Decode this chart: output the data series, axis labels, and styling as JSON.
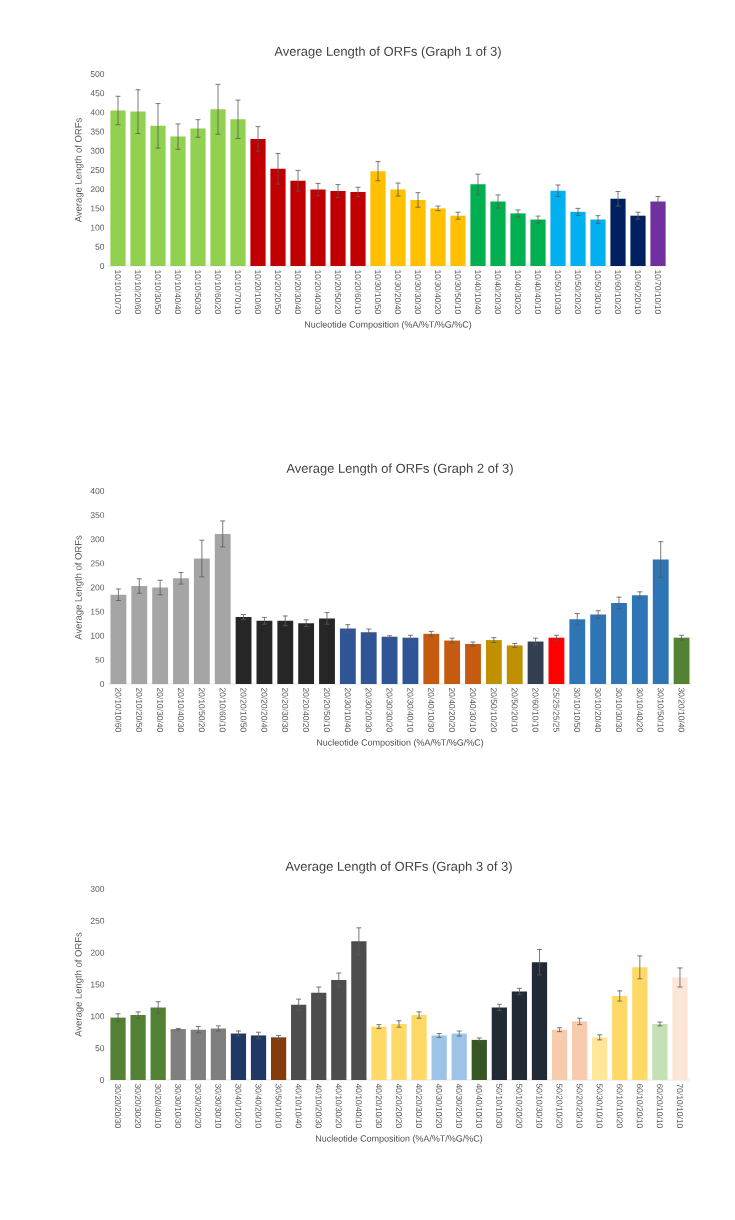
{
  "chart_data": [
    {
      "type": "bar",
      "title": "Average Length of ORFs (Graph 1 of 3)",
      "xlabel": "Nucleotide Composition (%A/%T/%G/%C)",
      "ylabel": "Average Length  of ORFs",
      "categories": [
        "10/10/10/70",
        "10/10/20/60",
        "10/10/30/50",
        "10/10/40/40",
        "10/10/50/30",
        "10/10/60/20",
        "10/10/70/10",
        "10/20/10/60",
        "10/20/20/50",
        "10/20/30/40",
        "10/20/40/30",
        "10/20/50/20",
        "10/20/60/10",
        "10/30/10/50",
        "10/30/20/40",
        "10/30/30/30",
        "10/30/40/20",
        "10/30/50/10",
        "10/40/10/40",
        "10/40/20/30",
        "10/40/30/20",
        "10/40/40/10",
        "10/50/10/30",
        "10/50/20/20",
        "10/50/30/10",
        "10/60/10/20",
        "10/60/20/10",
        "10/70/10/10"
      ],
      "values": [
        405,
        402,
        365,
        337,
        358,
        408,
        382,
        331,
        253,
        222,
        199,
        195,
        193,
        247,
        199,
        172,
        150,
        131,
        213,
        168,
        137,
        121,
        196,
        141,
        121,
        175,
        131,
        168
      ],
      "errors": [
        37,
        57,
        58,
        33,
        23,
        65,
        50,
        32,
        40,
        27,
        16,
        17,
        12,
        25,
        17,
        19,
        6,
        9,
        26,
        17,
        9,
        9,
        15,
        9,
        10,
        19,
        9,
        13
      ],
      "colors": [
        "#92d050",
        "#92d050",
        "#92d050",
        "#92d050",
        "#92d050",
        "#92d050",
        "#92d050",
        "#c00000",
        "#c00000",
        "#c00000",
        "#c00000",
        "#c00000",
        "#c00000",
        "#ffc000",
        "#ffc000",
        "#ffc000",
        "#ffc000",
        "#ffc000",
        "#00b050",
        "#00b050",
        "#00b050",
        "#00b050",
        "#00b0f0",
        "#00b0f0",
        "#00b0f0",
        "#002060",
        "#002060",
        "#7030a0"
      ],
      "ylim": [
        0,
        500
      ],
      "yticks": [
        0,
        50,
        100,
        150,
        200,
        250,
        300,
        350,
        400,
        450,
        500
      ]
    },
    {
      "type": "bar",
      "title": "Average Length of ORFs (Graph 2 of 3)",
      "xlabel": "Nucleotide Composition (%A/%T/%G/%C)",
      "ylabel": "Average Length  of ORFs",
      "categories": [
        "20/10/10/60",
        "20/10/20/50",
        "20/10/30/40",
        "20/10/40/30",
        "20/10/50/20",
        "20/10/60/10",
        "20/20/10/50",
        "20/20/20/40",
        "20/20/30/30",
        "20/20/40/20",
        "20/20/50/10",
        "20/30/10/40",
        "20/30/20/30",
        "20/30/30/20",
        "20/30/40/10",
        "20/40/10/30",
        "20/40/20/20",
        "20/40/30/10",
        "20/50/10/20",
        "20/50/20/10",
        "20/60/10/10",
        "25/25/25/25",
        "30/10/10/50",
        "30/10/20/40",
        "30/10/30/30",
        "30/10/40/20",
        "30/10/50/10",
        "30/20/10/40"
      ],
      "values": [
        185,
        203,
        200,
        219,
        260,
        311,
        139,
        131,
        131,
        126,
        136,
        115,
        107,
        98,
        96,
        104,
        90,
        83,
        91,
        80,
        88,
        96,
        134,
        144,
        168,
        184,
        258,
        96
      ],
      "errors": [
        12,
        15,
        15,
        12,
        38,
        27,
        5,
        7,
        10,
        7,
        12,
        8,
        7,
        2,
        5,
        5,
        5,
        4,
        5,
        4,
        7,
        5,
        12,
        8,
        12,
        7,
        37,
        5
      ],
      "colors": [
        "#a5a5a5",
        "#a5a5a5",
        "#a5a5a5",
        "#a5a5a5",
        "#a5a5a5",
        "#a5a5a5",
        "#262626",
        "#262626",
        "#262626",
        "#262626",
        "#262626",
        "#2f5597",
        "#2f5597",
        "#2f5597",
        "#2f5597",
        "#c55a11",
        "#c55a11",
        "#c55a11",
        "#bf9000",
        "#bf9000",
        "#333f50",
        "#ff0000",
        "#2e75b6",
        "#2e75b6",
        "#2e75b6",
        "#2e75b6",
        "#2e75b6",
        "#548235"
      ],
      "ylim": [
        0,
        400
      ],
      "yticks": [
        0,
        50,
        100,
        150,
        200,
        250,
        300,
        350,
        400
      ]
    },
    {
      "type": "bar",
      "title": "Average Length of ORFs (Graph 3 of 3)",
      "xlabel": "Nucleotide Composition (%A/%T/%G/%C)",
      "ylabel": "Average Length  of ORFs",
      "categories": [
        "30/20/20/30",
        "30/20/30/20",
        "30/20/40/10",
        "30/30/10/30",
        "30/30/20/20",
        "30/30/30/10",
        "30/40/10/20",
        "30/40/20/10",
        "30/50/10/10",
        "40/10/10/40",
        "40/10/20/30",
        "40/10/30/20",
        "40/10/40/10",
        "40/20/10/30",
        "40/20/20/20",
        "40/20/30/10",
        "40/30/10/20",
        "40/30/20/10",
        "40/40/10/10",
        "50/10/10/30",
        "50/10/20/20",
        "50/10/30/10",
        "50/20/10/20",
        "50/20/20/10",
        "50/30/10/10",
        "60/10/10/20",
        "60/10/20/10",
        "60/20/10/10",
        "70/10/10/10"
      ],
      "values": [
        98,
        102,
        114,
        80,
        79,
        81,
        73,
        70,
        67,
        118,
        137,
        157,
        218,
        84,
        88,
        102,
        70,
        73,
        63,
        114,
        139,
        185,
        79,
        92,
        67,
        132,
        177,
        88,
        161
      ],
      "errors": [
        6,
        5,
        9,
        1,
        5,
        4,
        4,
        5,
        3,
        9,
        9,
        11,
        21,
        3,
        5,
        5,
        3,
        4,
        3,
        5,
        5,
        20,
        3,
        5,
        4,
        8,
        18,
        3,
        15
      ],
      "colors": [
        "#548235",
        "#548235",
        "#548235",
        "#7f7f7f",
        "#7f7f7f",
        "#7f7f7f",
        "#1f3864",
        "#1f3864",
        "#843c0c",
        "#4d4d4d",
        "#4d4d4d",
        "#4d4d4d",
        "#4d4d4d",
        "#ffd966",
        "#ffd966",
        "#ffd966",
        "#9dc3e6",
        "#9dc3e6",
        "#375623",
        "#222a35",
        "#222a35",
        "#222a35",
        "#f8cbad",
        "#f8cbad",
        "#ffe699",
        "#ffd966",
        "#ffd966",
        "#c5e0b4",
        "#fbe5d6"
      ],
      "ylim": [
        0,
        300
      ],
      "yticks": [
        0,
        50,
        100,
        150,
        200,
        250,
        300
      ]
    }
  ]
}
